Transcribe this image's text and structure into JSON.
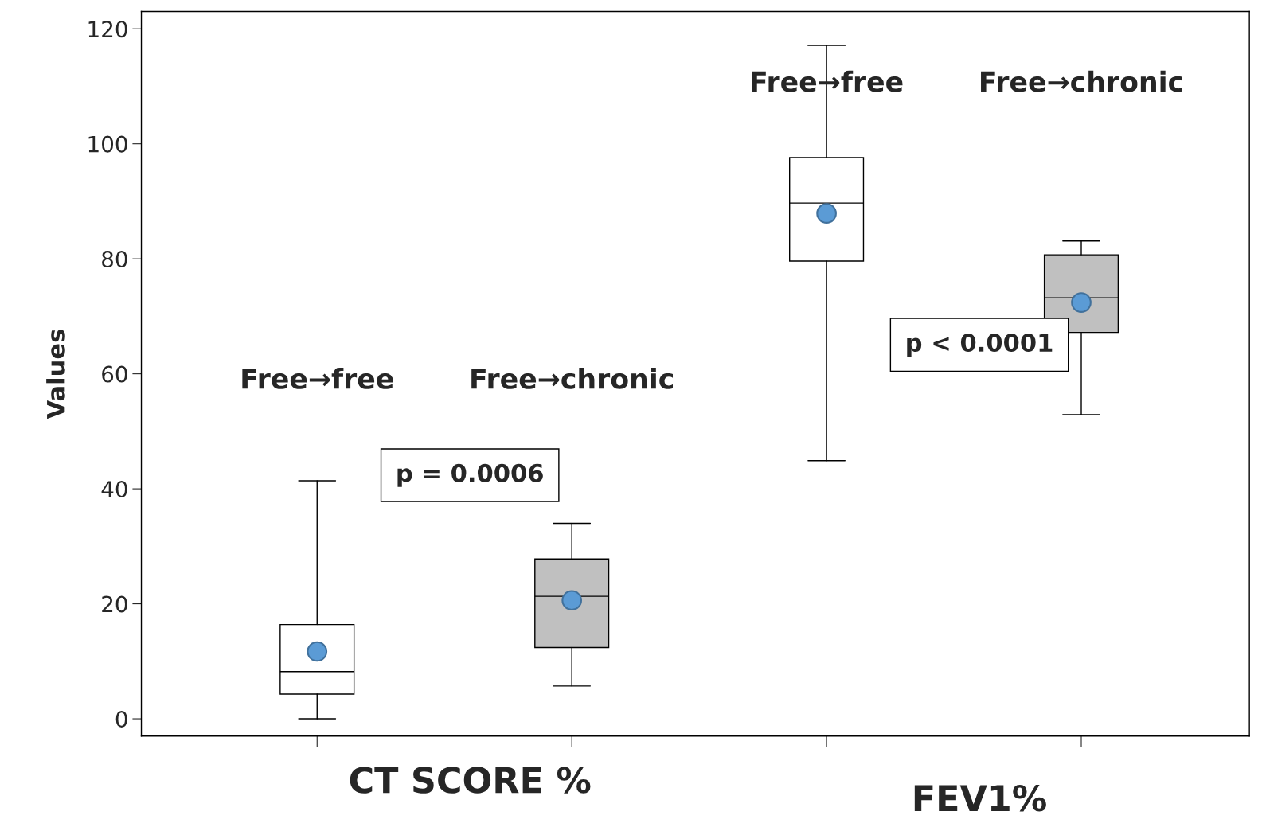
{
  "chart_data": {
    "type": "box",
    "ylabel": "Values",
    "categories": [
      "Free→free",
      "Free→chronic",
      "Free→free",
      "Free→chronic"
    ],
    "colors": [
      "#ffffff",
      "#c0c0c0",
      "#ffffff",
      "#c0c0c0"
    ],
    "boxes": [
      {
        "low": 0,
        "q1": 4.3,
        "median": 8.2,
        "q3": 16.4,
        "high": 41.4,
        "mean": 11.7
      },
      {
        "low": 5.7,
        "q1": 12.4,
        "median": 21.3,
        "q3": 27.8,
        "high": 34,
        "mean": 20.6
      },
      {
        "low": 44.9,
        "q1": 79.6,
        "median": 89.7,
        "q3": 97.6,
        "high": 117.1,
        "mean": 87.9
      },
      {
        "low": 52.9,
        "q1": 67.2,
        "median": 73.2,
        "q3": 80.7,
        "high": 83.1,
        "mean": 72.4
      }
    ],
    "ylim": [
      -3,
      123
    ],
    "yticks": [
      0,
      20,
      40,
      60,
      80,
      100,
      120
    ],
    "grid": false,
    "legend": false,
    "annotations": [
      "p = 0.0006",
      "p < 0.0001",
      "CT SCORE %",
      "FEV1%"
    ]
  }
}
